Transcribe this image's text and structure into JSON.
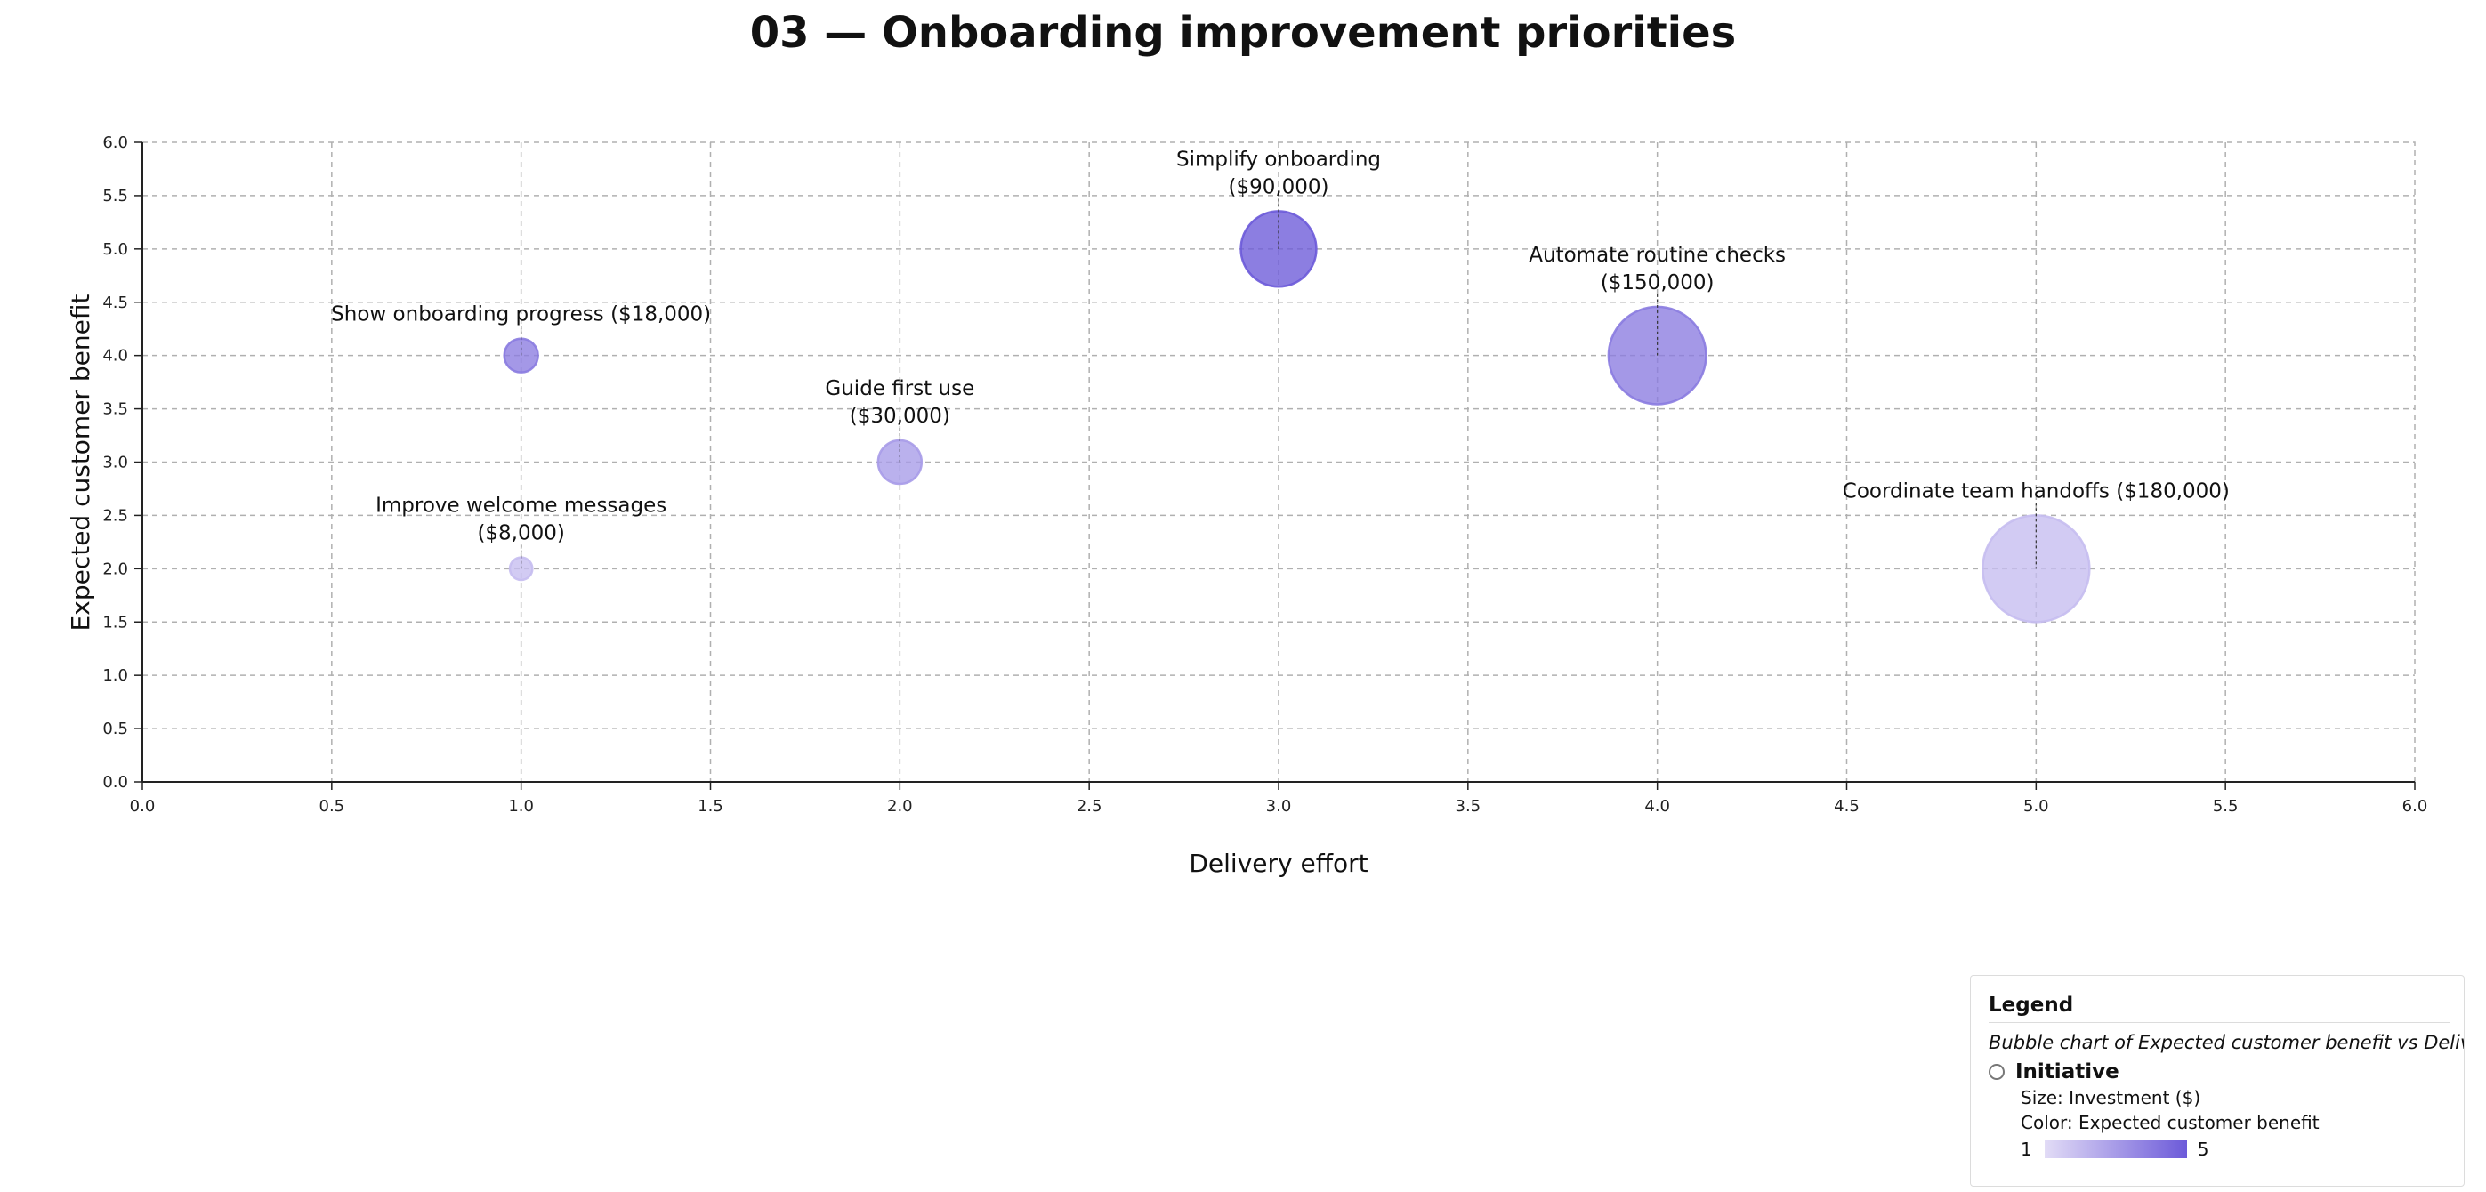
{
  "chart_data": {
    "type": "scatter",
    "title": "03 — Onboarding improvement priorities",
    "xlabel": "Delivery effort",
    "ylabel": "Expected customer benefit",
    "xlim": [
      0,
      6
    ],
    "ylim": [
      0,
      6
    ],
    "xticks": [
      "0.0",
      "0.5",
      "1.0",
      "1.5",
      "2.0",
      "2.5",
      "3.0",
      "3.5",
      "4.0",
      "4.5",
      "5.0",
      "5.5",
      "6.0"
    ],
    "yticks": [
      "0.0",
      "0.5",
      "1.0",
      "1.5",
      "2.0",
      "2.5",
      "3.0",
      "3.5",
      "4.0",
      "4.5",
      "5.0",
      "5.5",
      "6.0"
    ],
    "grid": true,
    "legend_position": "bottom-right",
    "color_scale": {
      "min": 1,
      "max": 5,
      "low_color": "#e2dcf6",
      "high_color": "#6c5ad9"
    },
    "series": [
      {
        "name": "Initiative",
        "points": [
          {
            "label_lines": [
              "Show onboarding progress ($18,000)"
            ],
            "x": 1,
            "y": 4,
            "investment": 18000,
            "benefit": 4
          },
          {
            "label_lines": [
              "Improve welcome messages",
              "($8,000)"
            ],
            "x": 1,
            "y": 2,
            "investment": 8000,
            "benefit": 2
          },
          {
            "label_lines": [
              "Guide first use",
              "($30,000)"
            ],
            "x": 2,
            "y": 3,
            "investment": 30000,
            "benefit": 3
          },
          {
            "label_lines": [
              "Simplify onboarding",
              "($90,000)"
            ],
            "x": 3,
            "y": 5,
            "investment": 90000,
            "benefit": 5
          },
          {
            "label_lines": [
              "Automate routine checks",
              "($150,000)"
            ],
            "x": 4,
            "y": 4,
            "investment": 150000,
            "benefit": 4
          },
          {
            "label_lines": [
              "Coordinate team handoffs ($180,000)"
            ],
            "x": 5,
            "y": 2,
            "investment": 180000,
            "benefit": 2
          }
        ]
      }
    ]
  },
  "legend": {
    "title": "Legend",
    "caption": "Bubble chart of Expected customer benefit vs Delivery effort",
    "series_label": "Initiative",
    "size_text": "Size: Investment ($)",
    "color_text": "Color: Expected customer benefit",
    "scale_min": "1",
    "scale_max": "5"
  }
}
